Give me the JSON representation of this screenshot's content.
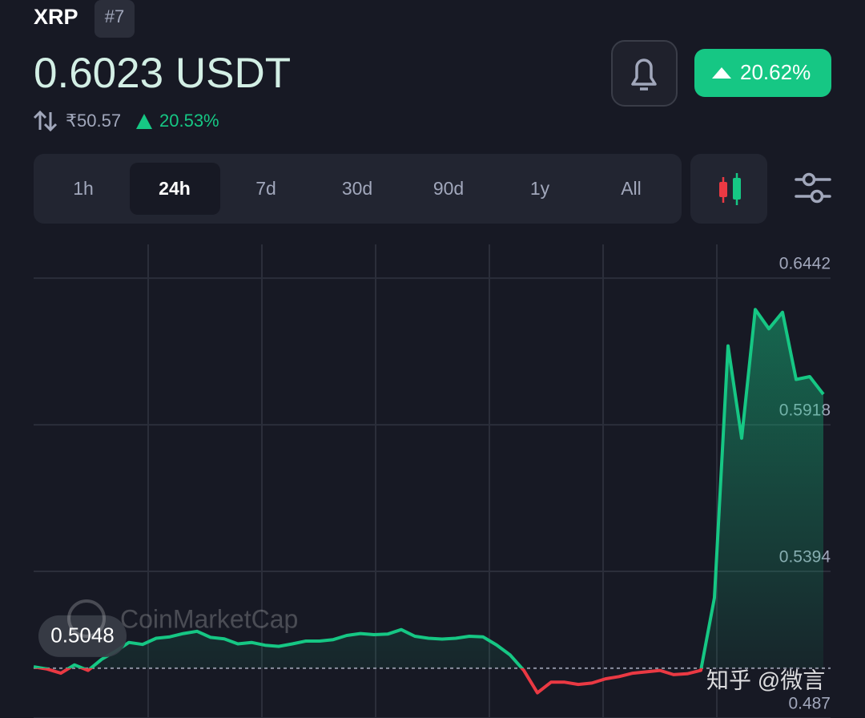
{
  "asset": {
    "symbol": "XRP",
    "rank": "#7",
    "price": "0.6023 USDT",
    "fiat_price": "₹50.57",
    "fiat_change": "20.53%",
    "badge_change": "20.62%"
  },
  "tabs": [
    "1h",
    "24h",
    "7d",
    "30d",
    "90d",
    "1y",
    "All"
  ],
  "watermarks": [
    "CoinMarketCap",
    "知乎 @微言"
  ],
  "chart_data": {
    "type": "line",
    "values": [
      0.5053,
      0.5045,
      0.503,
      0.506,
      0.504,
      0.508,
      0.5108,
      0.514,
      0.5133,
      0.5155,
      0.516,
      0.5172,
      0.518,
      0.5158,
      0.5153,
      0.5135,
      0.514,
      0.513,
      0.5126,
      0.5135,
      0.5145,
      0.5145,
      0.515,
      0.5165,
      0.5172,
      0.5168,
      0.517,
      0.5186,
      0.5162,
      0.5155,
      0.5152,
      0.5155,
      0.5162,
      0.516,
      0.5131,
      0.5095,
      0.504,
      0.496,
      0.4998,
      0.4998,
      0.499,
      0.4995,
      0.501,
      0.5018,
      0.503,
      0.5035,
      0.504,
      0.5025,
      0.5028,
      0.504,
      0.53,
      0.62,
      0.587,
      0.633,
      0.6261,
      0.632,
      0.608,
      0.609,
      0.6027
    ],
    "baseline": 0.5048,
    "up_color": "#16c784",
    "down_color": "#ea3943",
    "ylim": [
      0.487,
      0.6577
    ],
    "yticks": [
      0.6442,
      0.5918,
      0.5394,
      0.487
    ],
    "grid": true
  }
}
